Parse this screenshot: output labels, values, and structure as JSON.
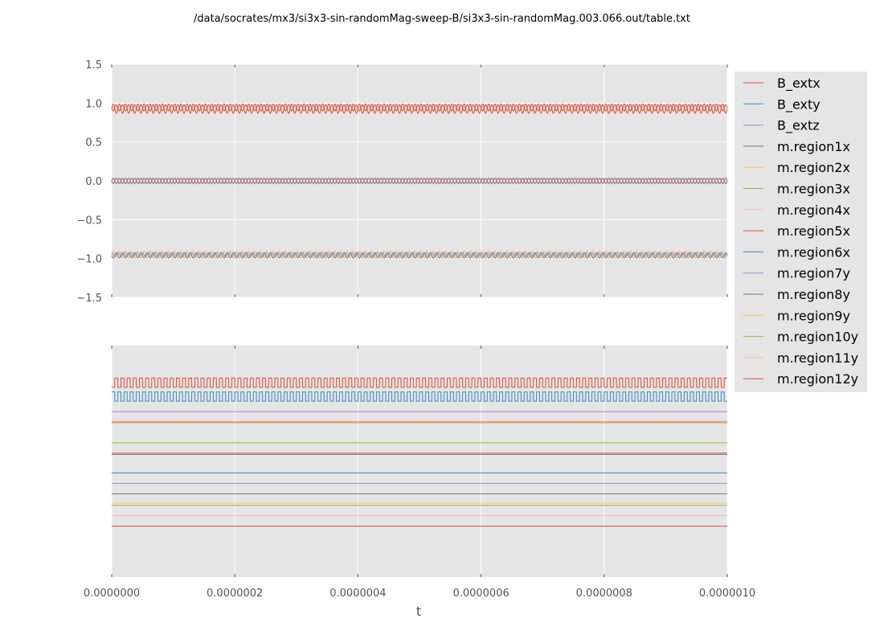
{
  "chart_data": {
    "title": "/data/socrates/mx3/si3x3-sin-randomMag-sweep-B/si3x3-sin-randomMag.003.066.out/table.txt",
    "xlabel": "t",
    "x_range": [
      0,
      1e-06
    ],
    "x_ticks": [
      0,
      2e-07,
      4e-07,
      6e-07,
      8e-07,
      1e-06
    ],
    "x_tick_labels": [
      "0.0000000",
      "0.0000002",
      "0.0000004",
      "0.0000006",
      "0.0000008",
      "0.0000010"
    ],
    "grid": true,
    "legend_position": "right",
    "colors": {
      "red": "#e24a33",
      "blue": "#348abd",
      "purple": "#988ed5",
      "gray": "#777777",
      "yellow": "#fbc15e",
      "green": "#8eba42",
      "pink": "#ffb5b8",
      "axes_bg": "#e5e5e5",
      "grid": "#ffffff"
    },
    "legend": [
      {
        "name": "B_extx",
        "color": "#e24a33"
      },
      {
        "name": "B_exty",
        "color": "#348abd"
      },
      {
        "name": "B_extz",
        "color": "#988ed5"
      },
      {
        "name": "m.region1x",
        "color": "#777777"
      },
      {
        "name": "m.region2x",
        "color": "#fbc15e"
      },
      {
        "name": "m.region3x",
        "color": "#8eba42"
      },
      {
        "name": "m.region4x",
        "color": "#ffb5b8"
      },
      {
        "name": "m.region5x",
        "color": "#e24a33"
      },
      {
        "name": "m.region6x",
        "color": "#348abd"
      },
      {
        "name": "m.region7y",
        "color": "#988ed5"
      },
      {
        "name": "m.region8y",
        "color": "#777777"
      },
      {
        "name": "m.region9y",
        "color": "#fbc15e"
      },
      {
        "name": "m.region10y",
        "color": "#8eba42"
      },
      {
        "name": "m.region11y",
        "color": "#ffb5b8"
      },
      {
        "name": "m.region12y",
        "color": "#e24a33"
      }
    ],
    "charts": [
      {
        "type": "line",
        "ylim": [
          -1.5,
          1.5
        ],
        "y_ticks": [
          -1.5,
          -1.0,
          -0.5,
          0.0,
          0.5,
          1.0,
          1.5
        ],
        "y_tick_labels": [
          "−1.5",
          "−1.0",
          "−0.5",
          "0.0",
          "0.5",
          "1.0",
          "1.5"
        ],
        "cycles": 100,
        "series": [
          {
            "color": "#e24a33",
            "base": 0.93,
            "amp": 0.06,
            "wave": "sine"
          },
          {
            "color": "#e24a33",
            "base": 0.94,
            "amp": 0.04,
            "wave": "sine",
            "phase": 0.5
          },
          {
            "color": "#348abd",
            "base": 0.0,
            "amp": 0.035,
            "wave": "sine"
          },
          {
            "color": "#e24a33",
            "base": 0.0,
            "amp": 0.035,
            "wave": "sine",
            "phase": 0.5
          },
          {
            "color": "#fbc15e",
            "base": -0.95,
            "amp": 0.05,
            "wave": "sine"
          },
          {
            "color": "#777777",
            "base": -0.96,
            "amp": 0.035,
            "wave": "sine",
            "phase": 0.5
          },
          {
            "color": "#988ed5",
            "base": -0.95,
            "amp": 0.03,
            "wave": "sine",
            "phase": 0.25
          }
        ]
      },
      {
        "type": "line",
        "ylim": [
          0,
          1
        ],
        "y_ticks": [],
        "cycles": 100,
        "series": [
          {
            "color": "#e24a33",
            "base": 0.84,
            "amp": 0.02,
            "wave": "square"
          },
          {
            "color": "#348abd",
            "base": 0.78,
            "amp": 0.02,
            "wave": "square",
            "phase": 0.5
          },
          {
            "color": "#988ed5",
            "base": 0.715,
            "amp": 0,
            "wave": "flat"
          },
          {
            "color": "#e24a33",
            "base": 0.67,
            "amp": 0,
            "wave": "flat"
          },
          {
            "color": "#fbc15e",
            "base": 0.665,
            "amp": 0,
            "wave": "flat"
          },
          {
            "color": "#8eba42",
            "base": 0.58,
            "amp": 0,
            "wave": "flat"
          },
          {
            "color": "#e24a33",
            "base": 0.535,
            "amp": 0,
            "wave": "flat"
          },
          {
            "color": "#777777",
            "base": 0.53,
            "amp": 0,
            "wave": "flat"
          },
          {
            "color": "#348abd",
            "base": 0.45,
            "amp": 0,
            "wave": "flat"
          },
          {
            "color": "#988ed5",
            "base": 0.405,
            "amp": 0,
            "wave": "flat"
          },
          {
            "color": "#777777",
            "base": 0.36,
            "amp": 0,
            "wave": "flat"
          },
          {
            "color": "#fbc15e",
            "base": 0.32,
            "amp": 0,
            "wave": "flat"
          },
          {
            "color": "#8eba42",
            "base": 0.31,
            "amp": 0,
            "wave": "flat"
          },
          {
            "color": "#ffb5b8",
            "base": 0.265,
            "amp": 0,
            "wave": "flat"
          },
          {
            "color": "#e24a33",
            "base": 0.22,
            "amp": 0,
            "wave": "flat"
          }
        ]
      }
    ]
  }
}
